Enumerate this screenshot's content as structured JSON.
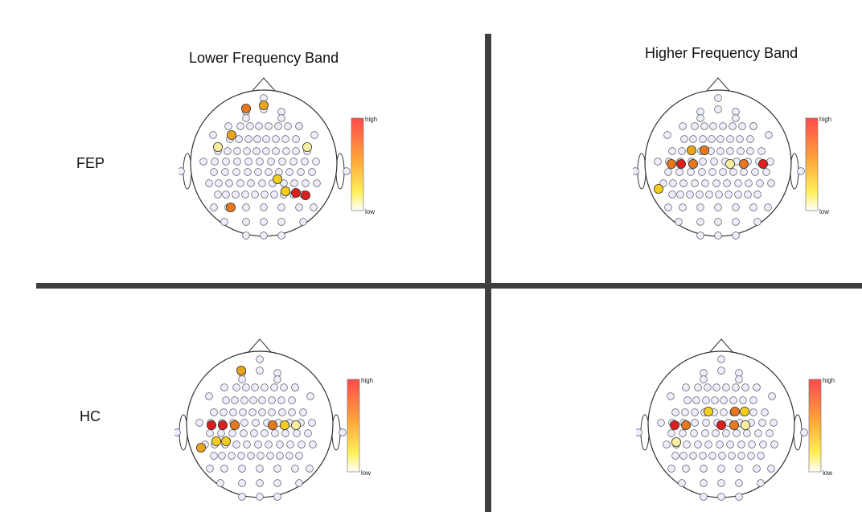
{
  "titles": {
    "lower": "Lower Frequency Band",
    "higher": "Higher Frequency Band"
  },
  "rows": {
    "fep": "FEP",
    "hc": "HC"
  },
  "colorbar": {
    "high": "high",
    "low": "low"
  },
  "colors": {
    "red": "#dc1e1e",
    "orange": "#e8781e",
    "amber": "#e8a51c",
    "gold": "#f5cd1e",
    "pale": "#f8eea0",
    "electrode": "#eceeff",
    "divider": "#3f3f3f"
  },
  "panels": {
    "fep_lower": {
      "highlights": [
        {
          "e": "AF3",
          "c": "orange"
        },
        {
          "e": "AF4",
          "c": "amber"
        },
        {
          "e": "F5",
          "c": "amber"
        },
        {
          "e": "FT7",
          "c": "pale"
        },
        {
          "e": "FC6",
          "c": "pale"
        },
        {
          "e": "C4",
          "c": "gold"
        },
        {
          "e": "CP2",
          "c": "gold"
        },
        {
          "e": "CP4",
          "c": "red"
        },
        {
          "e": "CP6",
          "c": "red"
        },
        {
          "e": "TP7",
          "c": "orange"
        }
      ]
    },
    "fep_higher": {
      "highlights": [
        {
          "e": "FC3",
          "c": "amber"
        },
        {
          "e": "FC1",
          "c": "orange"
        },
        {
          "e": "T7",
          "c": "orange"
        },
        {
          "e": "C5",
          "c": "red"
        },
        {
          "e": "C3",
          "c": "orange"
        },
        {
          "e": "C2",
          "c": "pale"
        },
        {
          "e": "C4",
          "c": "orange"
        },
        {
          "e": "T8",
          "c": "red"
        },
        {
          "e": "TP7",
          "c": "gold"
        }
      ]
    },
    "hc_lower": {
      "highlights": [
        {
          "e": "AF3",
          "c": "amber"
        },
        {
          "e": "T7",
          "c": "red"
        },
        {
          "e": "C5",
          "c": "red"
        },
        {
          "e": "C3",
          "c": "orange"
        },
        {
          "e": "C2",
          "c": "orange"
        },
        {
          "e": "C4",
          "c": "gold"
        },
        {
          "e": "C6",
          "c": "pale"
        },
        {
          "e": "CP5",
          "c": "gold"
        },
        {
          "e": "CP3",
          "c": "gold"
        },
        {
          "e": "TP7",
          "c": "amber"
        }
      ]
    },
    "hc_higher": {
      "highlights": [
        {
          "e": "FC1",
          "c": "gold"
        },
        {
          "e": "FC2",
          "c": "orange"
        },
        {
          "e": "FC4",
          "c": "gold"
        },
        {
          "e": "T7",
          "c": "red"
        },
        {
          "e": "C5",
          "c": "orange"
        },
        {
          "e": "C1",
          "c": "red"
        },
        {
          "e": "C2",
          "c": "orange"
        },
        {
          "e": "C4",
          "c": "pale"
        },
        {
          "e": "CP5",
          "c": "pale"
        }
      ]
    }
  }
}
